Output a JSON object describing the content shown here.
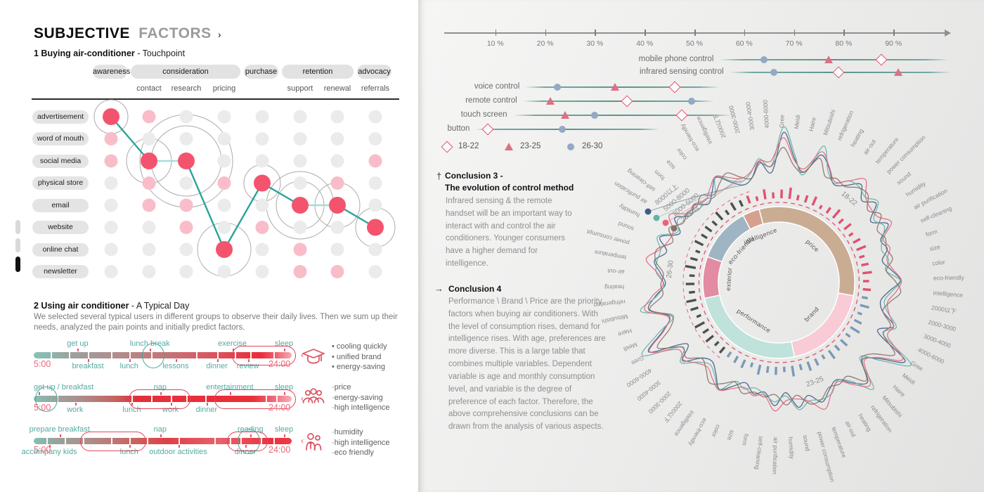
{
  "left_panel": {
    "title": {
      "primary": "SUBJECTIVE",
      "secondary": "FACTORS",
      "chevron": "›"
    },
    "section1": {
      "heading_bold": "1 Buying air-conditioner",
      "heading_rest": " - Touchpoint"
    },
    "section2": {
      "heading_bold": "2 Using air conditioner",
      "heading_rest": " - A Typical Day",
      "description": "We selected several typical users in different groups to observe their daily lives. Then we sum up their needs, analyzed the pain points and initially predict factors.",
      "personas": [
        {
          "icon": "graduation-cap-icon",
          "bullet": "• ",
          "needs": [
            "cooling quickly",
            "unified brand",
            "energy-saving"
          ]
        },
        {
          "icon": "people-icon",
          "bullet": "·",
          "needs": [
            "price",
            "energy-saving",
            "high intelligence"
          ]
        },
        {
          "icon": "family-icon",
          "bullet": "·",
          "needs": [
            "humidity",
            "high intelligence",
            "eco friendly"
          ]
        }
      ]
    }
  },
  "right_panel": {
    "conclusion3": {
      "marker": "†",
      "title_line1": "Conclusion 3 -",
      "title_line2": "The evolution of control method",
      "body": "Infrared sensing & the remote handset will be an important way to interact with and control the air conditioners. Younger consumers have a higher demand for intelligence."
    },
    "conclusion4": {
      "marker": "→",
      "title": "Conclusion 4",
      "body": "Performance \\ Brand \\ Price are the priority factors when buying air conditioners. With the level of consumption rises, demand for intelligence rises. With age, preferences are more diverse. This is a large table that combines multiple variables. Dependent variable is age and monthly consumption level, and variable is the degree of preference of each factor. Therefore, the above comprehensive conclusions can be drawn from the analysis of various aspects."
    }
  },
  "chart_data": [
    {
      "id": "touchpoint-matrix",
      "type": "scatter",
      "title": "1 Buying air-conditioner - Touchpoint",
      "stages": [
        {
          "label": "awareness",
          "cols": [
            0
          ]
        },
        {
          "label": "consideration",
          "cols": [
            1,
            2,
            3
          ]
        },
        {
          "label": "purchase",
          "cols": [
            4
          ]
        },
        {
          "label": "retention",
          "cols": [
            5,
            6
          ]
        },
        {
          "label": "advocacy",
          "cols": [
            7
          ]
        }
      ],
      "substages": [
        {
          "label": "contact",
          "col": 1
        },
        {
          "label": "research",
          "col": 2
        },
        {
          "label": "pricing",
          "col": 3
        },
        {
          "label": "support",
          "col": 5
        },
        {
          "label": "renewal",
          "col": 6
        },
        {
          "label": "referrals",
          "col": 7
        }
      ],
      "channels": [
        "advertisement",
        "word of mouth",
        "social media",
        "physical store",
        "email",
        "website",
        "online chat",
        "newsletter"
      ],
      "active_path": [
        {
          "row": 0,
          "col": 0
        },
        {
          "row": 2,
          "col": 1
        },
        {
          "row": 2,
          "col": 2
        },
        {
          "row": 6,
          "col": 3
        },
        {
          "row": 3,
          "col": 4
        },
        {
          "row": 4,
          "col": 5
        },
        {
          "row": 4,
          "col": 6
        },
        {
          "row": 5,
          "col": 7
        }
      ],
      "segment_shades": [
        "dark",
        "light",
        "dark",
        "dark",
        "dark",
        "light",
        "dark"
      ],
      "pink_cells": [
        [
          0,
          1
        ],
        [
          1,
          0
        ],
        [
          2,
          0
        ],
        [
          2,
          7
        ],
        [
          3,
          1
        ],
        [
          3,
          3
        ],
        [
          3,
          6
        ],
        [
          4,
          1
        ],
        [
          4,
          2
        ],
        [
          5,
          2
        ],
        [
          5,
          4
        ],
        [
          6,
          5
        ],
        [
          7,
          5
        ],
        [
          7,
          6
        ]
      ],
      "rings": [
        {
          "row": 0,
          "col": 0,
          "radii": [
            24
          ]
        },
        {
          "row": 2,
          "col": 1,
          "radii": [
            32
          ]
        },
        {
          "row": 2,
          "col": 2,
          "radii": [
            50,
            66
          ]
        },
        {
          "row": 6,
          "col": 3,
          "radii": [
            38
          ]
        },
        {
          "row": 3,
          "col": 4,
          "radii": [
            26
          ]
        },
        {
          "row": 4,
          "col": 5,
          "radii": [
            34,
            48
          ]
        },
        {
          "row": 4,
          "col": 6,
          "radii": [
            32
          ]
        },
        {
          "row": 5,
          "col": 7,
          "radii": [
            28
          ]
        }
      ],
      "colors": {
        "active": "#f4536e",
        "pink": "#f9bdc9",
        "gray": "#ebebec",
        "line_dark": "#2ca39b",
        "line_light": "#a8dcd6"
      }
    },
    {
      "id": "typical-day-timelines",
      "type": "timeline",
      "start": "5:00",
      "end": "24:00",
      "tracks": [
        {
          "above": [
            {
              "label": "get up",
              "pos": 0.17
            },
            {
              "label": "lunch break",
              "pos": 0.45
            },
            {
              "label": "exercise",
              "pos": 0.77
            },
            {
              "label": "sleep",
              "pos": 0.97
            }
          ],
          "below": [
            {
              "label": "breakfast",
              "pos": 0.21
            },
            {
              "label": "lunch",
              "pos": 0.37
            },
            {
              "label": "lessons",
              "pos": 0.55
            },
            {
              "label": "dinner",
              "pos": 0.71
            },
            {
              "label": "review",
              "pos": 0.83
            }
          ],
          "gaps": [
            0.065,
            0.135,
            0.21,
            0.3,
            0.37,
            0.455,
            0.63,
            0.71,
            0.78,
            0.84,
            0.93
          ],
          "highlights": [
            {
              "type": "circle",
              "pos": 0.46
            },
            {
              "type": "capsule",
              "from": 0.78,
              "to": 1.0
            }
          ]
        },
        {
          "above": [
            {
              "label": "get up / breakfast",
              "pos": 0.02
            },
            {
              "label": "nap",
              "pos": 0.49
            },
            {
              "label": "entertainment",
              "pos": 0.76
            },
            {
              "label": "sleep",
              "pos": 0.97
            }
          ],
          "below": [
            {
              "label": "work",
              "pos": 0.16
            },
            {
              "label": "lunch",
              "pos": 0.38
            },
            {
              "label": "work",
              "pos": 0.53
            },
            {
              "label": "dinner",
              "pos": 0.67
            }
          ],
          "gaps": [
            0.09,
            0.38,
            0.455,
            0.53,
            0.59,
            0.665,
            0.9,
            0.94
          ],
          "highlights": [
            {
              "type": "circle",
              "pos": 0.045
            },
            {
              "type": "capsule",
              "from": 0.38,
              "to": 0.59
            },
            {
              "type": "capsule",
              "from": 0.71,
              "to": 1.0
            }
          ]
        },
        {
          "above": [
            {
              "label": "prepare breakfast",
              "pos": 0.1
            },
            {
              "label": "nap",
              "pos": 0.49
            },
            {
              "label": "reading",
              "pos": 0.84
            },
            {
              "label": "sleep",
              "pos": 0.97
            }
          ],
          "below": [
            {
              "label": "accompany kids",
              "pos": 0.06
            },
            {
              "label": "lunch",
              "pos": 0.37
            },
            {
              "label": "outdoor activities",
              "pos": 0.56
            },
            {
              "label": "dinner",
              "pos": 0.82
            }
          ],
          "gaps": [
            0.05,
            0.12,
            0.19,
            0.3,
            0.37,
            0.44,
            0.56,
            0.7,
            0.76,
            0.8,
            0.88,
            0.93
          ],
          "highlights": [
            {
              "type": "capsule",
              "from": 0.19,
              "to": 0.42
            },
            {
              "type": "capsule",
              "from": 0.76,
              "to": 0.89
            },
            {
              "type": "circle",
              "pos": 0.83
            }
          ]
        }
      ]
    },
    {
      "id": "control-method-dotplot",
      "type": "scatter",
      "unit": "%",
      "xlim": [
        0,
        100
      ],
      "xticks": [
        "10 %",
        "20 %",
        "30 %",
        "40 %",
        "50 %",
        "60 %",
        "70 %",
        "80 %",
        "90 %"
      ],
      "legend": [
        {
          "shape": "diamond",
          "label": "18-22"
        },
        {
          "shape": "triangle",
          "label": "23-25"
        },
        {
          "shape": "circle",
          "label": "26-30"
        }
      ],
      "rows": [
        {
          "label": "mobile phone control",
          "line": [
            55,
            101
          ],
          "points": [
            {
              "group": "26-30",
              "value": 64
            },
            {
              "group": "23-25",
              "value": 77
            },
            {
              "group": "18-22",
              "value": 87.5
            }
          ]
        },
        {
          "label": "infrared sensing control",
          "line": [
            57,
            101.5
          ],
          "points": [
            {
              "group": "26-30",
              "value": 66
            },
            {
              "group": "18-22",
              "value": 79
            },
            {
              "group": "23-25",
              "value": 91
            }
          ]
        },
        {
          "label": "voice control",
          "line": [
            16,
            55
          ],
          "points": [
            {
              "group": "26-30",
              "value": 22.5
            },
            {
              "group": "23-25",
              "value": 34
            },
            {
              "group": "18-22",
              "value": 46
            }
          ]
        },
        {
          "label": "remote control",
          "line": [
            15.5,
            54
          ],
          "points": [
            {
              "group": "23-25",
              "value": 21
            },
            {
              "group": "18-22",
              "value": 36.5
            },
            {
              "group": "26-30",
              "value": 49.5
            }
          ]
        },
        {
          "label": "touch screen",
          "line": [
            13.5,
            57.5
          ],
          "points": [
            {
              "group": "23-25",
              "value": 24
            },
            {
              "group": "26-30",
              "value": 30
            },
            {
              "group": "18-22",
              "value": 47.5
            }
          ]
        },
        {
          "label": "button",
          "line": [
            6,
            43
          ],
          "points": [
            {
              "group": "18-22",
              "value": 8.5
            },
            {
              "group": "26-30",
              "value": 23.5
            }
          ]
        }
      ]
    },
    {
      "id": "preference-radial",
      "type": "radial-line",
      "spoke_labels": [
        "2000以下",
        "2000-3000",
        "3000-4000",
        "4000-6000",
        "Gree",
        "Meidi",
        "Haire",
        "Mitsubishi",
        "refrigeration",
        "heating",
        "air-out",
        "temperature",
        "power consumption",
        "sound",
        "humidity",
        "air purification",
        "self-cleaning",
        "form",
        "size",
        "color",
        "eco-friendly",
        "intelligence"
      ],
      "age_sections": [
        {
          "label": "18-22",
          "tick_color": "#e0516d"
        },
        {
          "label": "23-25",
          "tick_color": "#7b98b8"
        },
        {
          "label": "26-30",
          "tick_color": "#4f4f4f"
        }
      ],
      "ring_segments": [
        {
          "label": "price",
          "from": -15,
          "to": 100,
          "color": "#c9ac92"
        },
        {
          "label": "brand",
          "from": 100,
          "to": 168,
          "color": "#f8cbd6"
        },
        {
          "label": "performance",
          "from": 168,
          "to": 258,
          "color": "#bfe2da"
        },
        {
          "label": "exterior",
          "from": 258,
          "to": 290,
          "color": "#e38ba3"
        },
        {
          "label": "eco-friendly",
          "from": 290,
          "to": 332,
          "color": "#9fb5c4"
        },
        {
          "label": "intelligence",
          "from": 332,
          "to": 345,
          "color": "#d5a18e"
        }
      ],
      "series": [
        {
          "name": "8000以上",
          "color": "#3f5c85",
          "values": [
            0.15,
            0.2,
            0.5,
            0.3,
            0.95,
            0.5,
            0.35,
            0.75,
            0.5,
            0.3,
            0.45,
            0.6,
            0.35,
            0.55,
            0.3,
            0.5,
            0.25,
            0.35,
            0.2,
            0.3,
            0.45,
            0.3
          ]
        },
        {
          "name": "5000-8000",
          "color": "#63b2a8",
          "values": [
            0.2,
            0.3,
            0.6,
            0.4,
            1.0,
            0.6,
            0.3,
            0.85,
            0.45,
            0.35,
            0.55,
            0.5,
            0.45,
            0.65,
            0.35,
            0.4,
            0.3,
            0.25,
            0.3,
            0.2,
            0.5,
            0.35
          ]
        },
        {
          "name": "2000-5000",
          "color": "#e2677e",
          "values": [
            0.25,
            0.35,
            0.55,
            0.45,
            0.85,
            0.55,
            0.4,
            0.7,
            0.55,
            0.4,
            0.5,
            0.65,
            0.5,
            0.45,
            0.4,
            0.55,
            0.35,
            0.4,
            0.25,
            0.35,
            0.55,
            0.4
          ]
        },
        {
          "name": "2000以下",
          "color": "#8b7065",
          "values": [
            0.3,
            0.25,
            0.45,
            0.35,
            0.75,
            0.45,
            0.3,
            0.6,
            0.4,
            0.45,
            0.35,
            0.5,
            0.6,
            0.35,
            0.45,
            0.3,
            0.4,
            0.3,
            0.35,
            0.25,
            0.4,
            0.45
          ]
        }
      ],
      "tick_lengths": [
        12,
        7,
        15,
        9,
        13,
        17,
        8,
        11,
        14,
        6,
        10,
        16,
        9,
        13,
        7,
        12,
        15,
        8,
        11,
        14,
        9,
        12,
        9,
        14,
        7,
        12,
        16,
        8,
        13,
        10,
        15,
        7,
        11,
        14,
        9,
        16,
        8,
        12,
        10,
        15,
        7,
        13,
        11,
        9,
        11,
        8,
        14,
        10,
        16,
        7,
        12,
        15,
        9,
        13,
        8,
        16,
        11,
        7,
        14,
        10,
        12,
        9,
        15,
        8,
        13,
        10
      ]
    }
  ]
}
